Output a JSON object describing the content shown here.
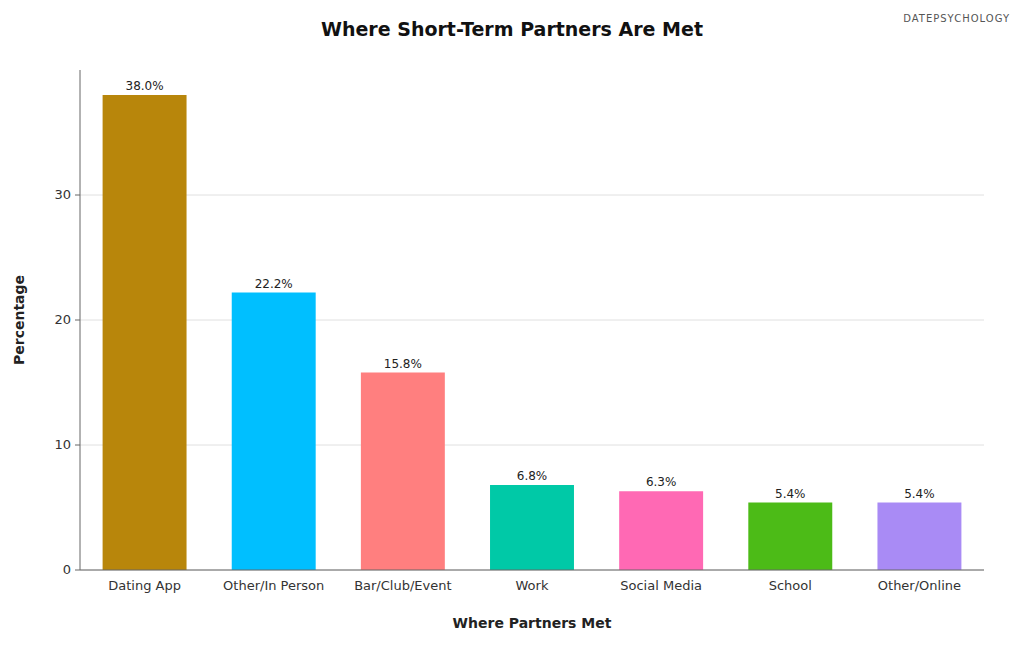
{
  "chart_data": {
    "type": "bar",
    "title": "Where Short-Term Partners Are Met",
    "x_label": "Where Partners Met",
    "y_label": "Percentage",
    "categories": [
      "Dating App",
      "Other/In Person",
      "Bar/Club/Event",
      "Work",
      "Social Media",
      "School",
      "Other/Online"
    ],
    "values": [
      38.0,
      22.2,
      15.8,
      6.8,
      6.3,
      5.4,
      5.4
    ],
    "value_labels": [
      "38.0%",
      "22.2%",
      "15.8%",
      "6.8%",
      "6.3%",
      "5.4%",
      "5.4%"
    ],
    "colors": [
      "#B8860B",
      "#00BFFF",
      "#FF7F7F",
      "#00C9A7",
      "#FF69B4",
      "#4CBB17",
      "#A98BF5"
    ],
    "ylim": [
      0,
      40
    ],
    "yticks": [
      0,
      10,
      20,
      30
    ],
    "grid": true,
    "data_labels": true,
    "annotations": [
      "DATEPSYCHOLOGY"
    ]
  }
}
